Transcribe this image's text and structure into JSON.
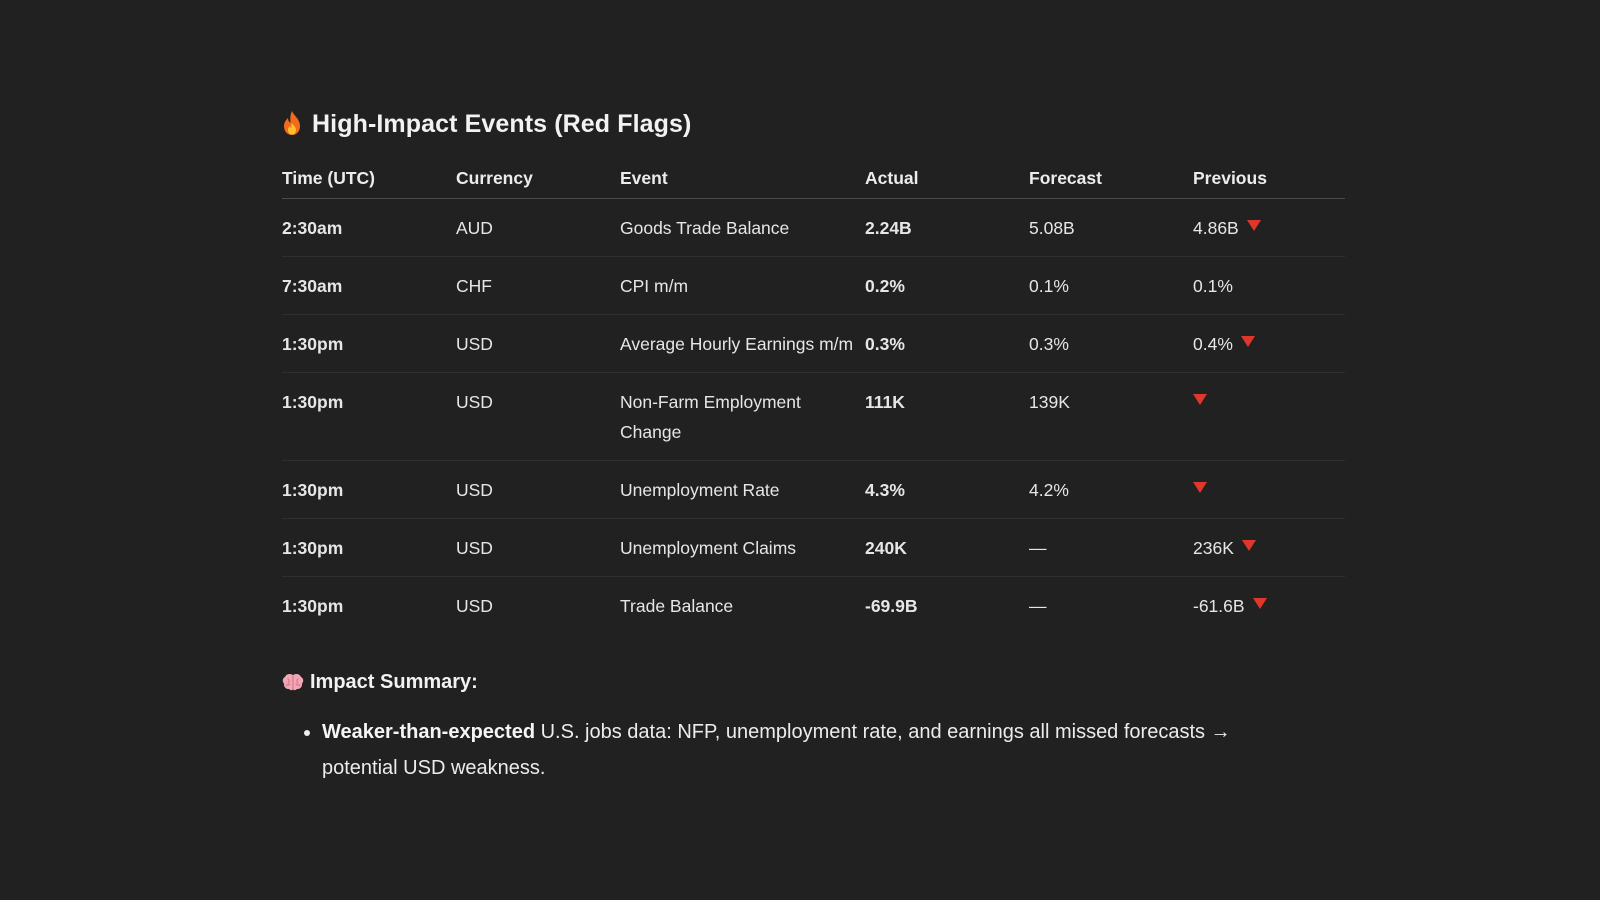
{
  "heading": {
    "icon": "fire-icon",
    "title": "High-Impact Events (Red Flags)"
  },
  "table": {
    "columns": [
      "Time (UTC)",
      "Currency",
      "Event",
      "Actual",
      "Forecast",
      "Previous"
    ],
    "rows": [
      {
        "time": "2:30am",
        "currency": "AUD",
        "event": "Goods Trade Balance",
        "actual": "2.24B",
        "forecast": "5.08B",
        "previous": "4.86B",
        "flag": true
      },
      {
        "time": "7:30am",
        "currency": "CHF",
        "event": "CPI m/m",
        "actual": "0.2%",
        "forecast": "0.1%",
        "previous": "0.1%",
        "flag": false
      },
      {
        "time": "1:30pm",
        "currency": "USD",
        "event": "Average Hourly Earnings m/m",
        "actual": "0.3%",
        "forecast": "0.3%",
        "previous": "0.4%",
        "flag": true
      },
      {
        "time": "1:30pm",
        "currency": "USD",
        "event": "Non-Farm Employment Change",
        "actual": "111K",
        "forecast": "139K",
        "previous": "",
        "flag": true
      },
      {
        "time": "1:30pm",
        "currency": "USD",
        "event": "Unemployment Rate",
        "actual": "4.3%",
        "forecast": "4.2%",
        "previous": "",
        "flag": true
      },
      {
        "time": "1:30pm",
        "currency": "USD",
        "event": "Unemployment Claims",
        "actual": "240K",
        "forecast": "—",
        "previous": "236K",
        "flag": true
      },
      {
        "time": "1:30pm",
        "currency": "USD",
        "event": "Trade Balance",
        "actual": "-69.9B",
        "forecast": "—",
        "previous": "-61.6B",
        "flag": true
      }
    ]
  },
  "summary": {
    "icon": "brain-icon",
    "title": "Impact Summary:",
    "bullets": [
      {
        "bold": "Weaker-than-expected",
        "text": " U.S. jobs data: NFP, unemployment rate, and earnings all missed forecasts → potential USD weakness."
      }
    ]
  },
  "colors": {
    "background": "#212121",
    "text": "#ececec",
    "flag": "#e0362b"
  }
}
